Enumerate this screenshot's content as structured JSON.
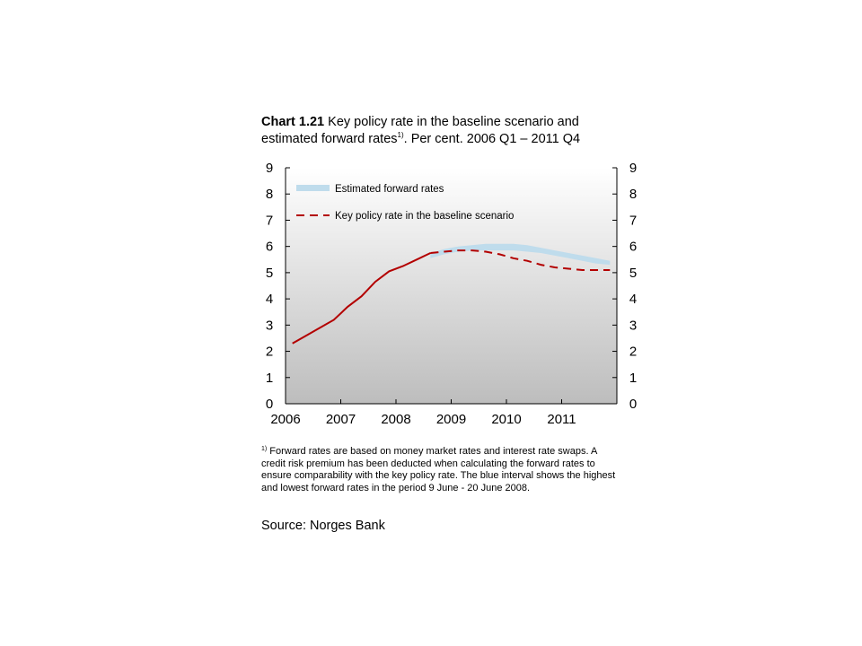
{
  "header": {
    "chart_number": "Chart 1.21",
    "title_part1": "Key policy rate in the baseline scenario and estimated forward rates",
    "title_sup": "1)",
    "title_part2": ". Per cent. 2006 Q1 – 2011 Q4"
  },
  "colors": {
    "band": "#bfdcec",
    "policy_line": "#b30000",
    "bg_top": "#ffffff",
    "bg_bottom": "#bdbdbd"
  },
  "chart_data": {
    "type": "line",
    "x_tick_labels": [
      "2006",
      "2007",
      "2008",
      "2009",
      "2010",
      "2011"
    ],
    "y_ticks": [
      0,
      1,
      2,
      3,
      4,
      5,
      6,
      7,
      8,
      9
    ],
    "ylim": [
      0,
      9
    ],
    "xlim": [
      2006.0,
      2012.0
    ],
    "legend_position": "top-left",
    "grid": false,
    "series": [
      {
        "name": "Estimated forward rates",
        "style": "band",
        "x": [
          2008.625,
          2008.875,
          2009.125,
          2009.375,
          2009.625,
          2009.875,
          2010.125,
          2010.375,
          2010.625,
          2010.875,
          2011.125,
          2011.375,
          2011.625,
          2011.875
        ],
        "low": [
          5.55,
          5.7,
          5.8,
          5.85,
          5.85,
          5.85,
          5.85,
          5.8,
          5.75,
          5.65,
          5.55,
          5.45,
          5.35,
          5.3
        ],
        "high": [
          5.75,
          5.9,
          6.0,
          6.05,
          6.1,
          6.1,
          6.1,
          6.05,
          5.95,
          5.85,
          5.75,
          5.65,
          5.55,
          5.45
        ]
      },
      {
        "name": "Key policy rate in the baseline scenario",
        "style": "solid-then-dashed",
        "dash_from_x": 2008.625,
        "x": [
          2006.125,
          2006.375,
          2006.625,
          2006.875,
          2007.125,
          2007.375,
          2007.625,
          2007.875,
          2008.125,
          2008.375,
          2008.625,
          2008.875,
          2009.125,
          2009.375,
          2009.625,
          2009.875,
          2010.125,
          2010.375,
          2010.625,
          2010.875,
          2011.125,
          2011.375,
          2011.625,
          2011.875
        ],
        "y": [
          2.3,
          2.6,
          2.9,
          3.2,
          3.7,
          4.1,
          4.65,
          5.05,
          5.25,
          5.5,
          5.75,
          5.8,
          5.85,
          5.85,
          5.8,
          5.7,
          5.55,
          5.45,
          5.3,
          5.2,
          5.15,
          5.1,
          5.1,
          5.1
        ]
      }
    ]
  },
  "footnote": {
    "marker": "1)",
    "text": "Forward rates are based on money market rates and interest rate swaps. A credit risk premium has been deducted when calculating the forward rates to ensure comparability with the key policy rate. The blue interval shows the highest and lowest forward rates in the period 9 June - 20 June 2008."
  },
  "source": "Source: Norges Bank"
}
